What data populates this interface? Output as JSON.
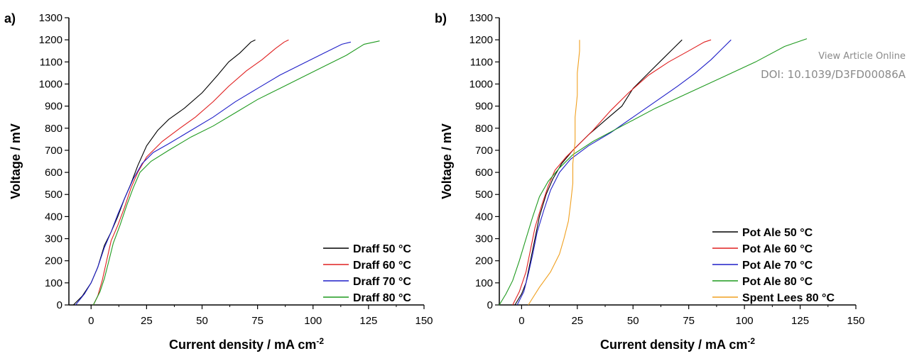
{
  "watermark": {
    "line1": "View Article Online",
    "line2": "DOI: 10.1039/D3FD00086A"
  },
  "colors": {
    "black": "#000000",
    "red": "#e02020",
    "blue": "#1f1fc8",
    "green": "#1f9a1f",
    "orange": "#f0a020"
  },
  "chart_data": [
    {
      "panel_label": "a)",
      "type": "line",
      "xlabel": "Current density / mA cm",
      "xlabel_superscript": "-2",
      "ylabel": "Voltage / mV",
      "xlim": [
        -10,
        150
      ],
      "ylim": [
        0,
        1300
      ],
      "xticks": [
        0,
        25,
        50,
        75,
        100,
        125,
        150
      ],
      "yticks": [
        0,
        100,
        200,
        300,
        400,
        500,
        600,
        700,
        800,
        900,
        1000,
        1100,
        1200,
        1300
      ],
      "grid": false,
      "legend_position": "bottom-right",
      "series": [
        {
          "name": "Draff 50 °C",
          "color": "#000000",
          "points": [
            [
              -8,
              0
            ],
            [
              -4,
              40
            ],
            [
              0,
              100
            ],
            [
              3,
              170
            ],
            [
              6,
              270
            ],
            [
              9,
              330
            ],
            [
              12,
              400
            ],
            [
              15,
              480
            ],
            [
              18,
              550
            ],
            [
              21,
              630
            ],
            [
              25,
              720
            ],
            [
              30,
              790
            ],
            [
              35,
              840
            ],
            [
              42,
              890
            ],
            [
              50,
              960
            ],
            [
              57,
              1040
            ],
            [
              62,
              1100
            ],
            [
              67,
              1140
            ],
            [
              72,
              1190
            ],
            [
              74,
              1200
            ]
          ]
        },
        {
          "name": "Draff 60 °C",
          "color": "#e02020",
          "points": [
            [
              1,
              0
            ],
            [
              3,
              40
            ],
            [
              5,
              110
            ],
            [
              7,
              200
            ],
            [
              9,
              290
            ],
            [
              12,
              360
            ],
            [
              15,
              440
            ],
            [
              18,
              530
            ],
            [
              21,
              600
            ],
            [
              25,
              670
            ],
            [
              32,
              740
            ],
            [
              40,
              800
            ],
            [
              47,
              850
            ],
            [
              55,
              920
            ],
            [
              62,
              990
            ],
            [
              70,
              1060
            ],
            [
              77,
              1110
            ],
            [
              83,
              1160
            ],
            [
              87,
              1190
            ],
            [
              89,
              1200
            ]
          ]
        },
        {
          "name": "Draff 70 °C",
          "color": "#1f1fc8",
          "points": [
            [
              -7,
              0
            ],
            [
              -3,
              50
            ],
            [
              0,
              100
            ],
            [
              3,
              170
            ],
            [
              6,
              260
            ],
            [
              9,
              330
            ],
            [
              12,
              410
            ],
            [
              15,
              480
            ],
            [
              19,
              570
            ],
            [
              23,
              640
            ],
            [
              28,
              690
            ],
            [
              35,
              730
            ],
            [
              45,
              790
            ],
            [
              55,
              850
            ],
            [
              65,
              920
            ],
            [
              75,
              980
            ],
            [
              85,
              1040
            ],
            [
              95,
              1090
            ],
            [
              105,
              1140
            ],
            [
              113,
              1180
            ],
            [
              117,
              1190
            ]
          ]
        },
        {
          "name": "Draff 80 °C",
          "color": "#1f9a1f",
          "points": [
            [
              1,
              0
            ],
            [
              4,
              60
            ],
            [
              6,
              120
            ],
            [
              8,
              200
            ],
            [
              10,
              280
            ],
            [
              13,
              360
            ],
            [
              16,
              450
            ],
            [
              19,
              530
            ],
            [
              22,
              600
            ],
            [
              27,
              650
            ],
            [
              35,
              700
            ],
            [
              45,
              760
            ],
            [
              55,
              810
            ],
            [
              65,
              870
            ],
            [
              75,
              930
            ],
            [
              85,
              980
            ],
            [
              95,
              1030
            ],
            [
              105,
              1080
            ],
            [
              115,
              1130
            ],
            [
              123,
              1180
            ],
            [
              130,
              1195
            ]
          ]
        }
      ]
    },
    {
      "panel_label": "b)",
      "type": "line",
      "xlabel": "Current density / mA cm",
      "xlabel_superscript": "-2",
      "ylabel": "Voltage / mV",
      "xlim": [
        -10,
        150
      ],
      "ylim": [
        0,
        1300
      ],
      "xticks": [
        0,
        25,
        50,
        75,
        100,
        125,
        150
      ],
      "yticks": [
        0,
        100,
        200,
        300,
        400,
        500,
        600,
        700,
        800,
        900,
        1000,
        1100,
        1200,
        1300
      ],
      "grid": false,
      "legend_position": "bottom-right",
      "series": [
        {
          "name": "Pot Ale 50 °C",
          "color": "#000000",
          "points": [
            [
              -3,
              0
            ],
            [
              0,
              50
            ],
            [
              2,
              100
            ],
            [
              4,
              200
            ],
            [
              6,
              300
            ],
            [
              8,
              400
            ],
            [
              11,
              500
            ],
            [
              14,
              570
            ],
            [
              18,
              640
            ],
            [
              23,
              700
            ],
            [
              30,
              770
            ],
            [
              38,
              840
            ],
            [
              45,
              900
            ],
            [
              50,
              980
            ],
            [
              57,
              1050
            ],
            [
              63,
              1110
            ],
            [
              68,
              1160
            ],
            [
              72,
              1200
            ]
          ]
        },
        {
          "name": "Pot Ale 60 °C",
          "color": "#e02020",
          "points": [
            [
              -4,
              0
            ],
            [
              -1,
              60
            ],
            [
              2,
              150
            ],
            [
              4,
              250
            ],
            [
              6,
              350
            ],
            [
              9,
              450
            ],
            [
              12,
              540
            ],
            [
              15,
              610
            ],
            [
              20,
              670
            ],
            [
              26,
              730
            ],
            [
              32,
              790
            ],
            [
              40,
              880
            ],
            [
              48,
              960
            ],
            [
              57,
              1040
            ],
            [
              66,
              1100
            ],
            [
              75,
              1150
            ],
            [
              82,
              1190
            ],
            [
              85,
              1200
            ]
          ]
        },
        {
          "name": "Pot Ale 70 °C",
          "color": "#1f1fc8",
          "points": [
            [
              -2,
              0
            ],
            [
              1,
              60
            ],
            [
              3,
              140
            ],
            [
              5,
              230
            ],
            [
              7,
              330
            ],
            [
              10,
              430
            ],
            [
              13,
              520
            ],
            [
              17,
              600
            ],
            [
              22,
              660
            ],
            [
              30,
              720
            ],
            [
              40,
              780
            ],
            [
              50,
              850
            ],
            [
              60,
              920
            ],
            [
              70,
              990
            ],
            [
              78,
              1050
            ],
            [
              85,
              1110
            ],
            [
              91,
              1170
            ],
            [
              94,
              1200
            ]
          ]
        },
        {
          "name": "Pot Ale 80 °C",
          "color": "#1f9a1f",
          "points": [
            [
              -10,
              0
            ],
            [
              -7,
              50
            ],
            [
              -4,
              110
            ],
            [
              -1,
              200
            ],
            [
              2,
              300
            ],
            [
              5,
              400
            ],
            [
              8,
              490
            ],
            [
              12,
              560
            ],
            [
              17,
              620
            ],
            [
              23,
              680
            ],
            [
              32,
              740
            ],
            [
              45,
              810
            ],
            [
              60,
              890
            ],
            [
              75,
              960
            ],
            [
              90,
              1030
            ],
            [
              105,
              1100
            ],
            [
              118,
              1170
            ],
            [
              128,
              1205
            ]
          ]
        },
        {
          "name": "Spent Lees 80 °C",
          "color": "#f0a020",
          "points": [
            [
              3,
              0
            ],
            [
              8,
              80
            ],
            [
              13,
              150
            ],
            [
              17,
              230
            ],
            [
              19,
              300
            ],
            [
              21,
              380
            ],
            [
              22,
              460
            ],
            [
              23,
              550
            ],
            [
              23,
              640
            ],
            [
              24,
              740
            ],
            [
              24,
              850
            ],
            [
              25,
              950
            ],
            [
              25,
              1050
            ],
            [
              26,
              1150
            ],
            [
              26,
              1200
            ]
          ]
        }
      ]
    }
  ]
}
